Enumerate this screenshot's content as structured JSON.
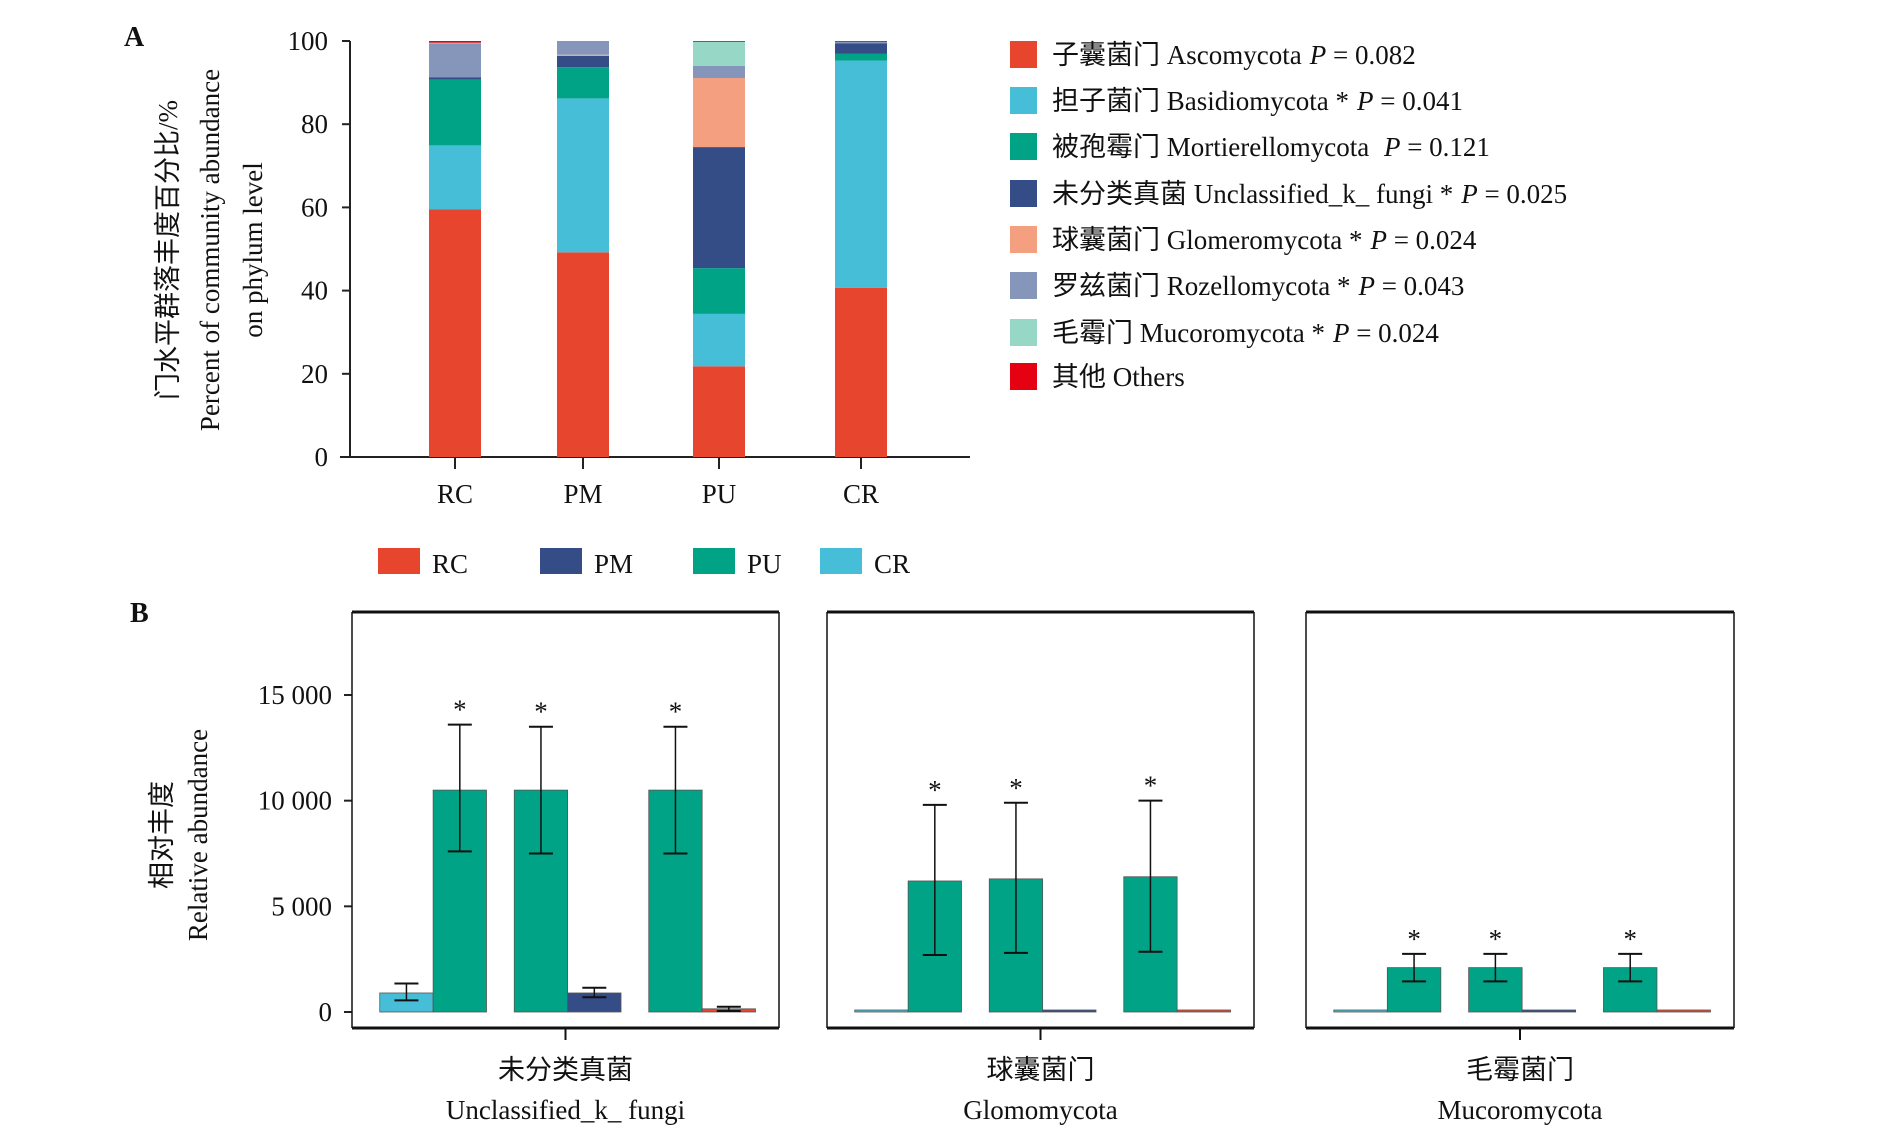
{
  "chart_data": [
    {
      "type": "bar",
      "stacked": true,
      "panel_label": "A",
      "ylabel_lines": [
        "门水平群落丰度百分比/%",
        "Percent of community abundance",
        "on phylum level"
      ],
      "ylim": [
        0,
        100
      ],
      "yticks": [
        0,
        20,
        40,
        60,
        80,
        100
      ],
      "categories": [
        "RC",
        "PM",
        "PU",
        "CR"
      ],
      "legend_position": "right",
      "p_label": "P",
      "series": [
        {
          "name": "子囊菌门 Ascomycota",
          "sig": "",
          "p": " = 0.082",
          "color": "#E8452F",
          "values": [
            59.5,
            49.2,
            21.8,
            40.7
          ]
        },
        {
          "name": "担子菌门 Basidiomycota",
          "sig": " *",
          "p": " = 0.041",
          "color": "#47BED8",
          "values": [
            15.4,
            37.0,
            12.6,
            54.6
          ]
        },
        {
          "name": "被孢霉门 Mortierellomycota",
          "sig": " ",
          "p": " = 0.121",
          "color": "#00A386",
          "values": [
            15.8,
            7.5,
            11.0,
            1.6
          ]
        },
        {
          "name": "未分类真菌 Unclassified_k_ fungi",
          "sig": " *",
          "p": " = 0.025",
          "color": "#354D87",
          "values": [
            0.6,
            2.7,
            29.1,
            2.5
          ]
        },
        {
          "name": "球囊菌门 Glomeromycota",
          "sig": " *",
          "p": " = 0.024",
          "color": "#F39F80",
          "values": [
            0.0,
            0.3,
            16.6,
            0.0
          ]
        },
        {
          "name": "罗兹菌门 Rozellomycota",
          "sig": " *",
          "p": " = 0.043",
          "color": "#8596BA",
          "values": [
            8.1,
            3.3,
            2.9,
            0.4
          ]
        },
        {
          "name": "毛霉门 Mucoromycota",
          "sig": " *",
          "p": " = 0.024",
          "color": "#96D7C6",
          "values": [
            0.2,
            0.0,
            5.8,
            0.0
          ]
        },
        {
          "name": "其他 Others",
          "sig": "",
          "p": "",
          "color": "#E50012",
          "values": [
            0.4,
            0.0,
            0.2,
            0.2
          ]
        }
      ]
    },
    {
      "type": "bar",
      "panel_label": "B",
      "ylabel_lines": [
        "相对丰度",
        "Relative abundance"
      ],
      "ylim": [
        0,
        18000
      ],
      "yticks": [
        0,
        5000,
        10000,
        15000
      ],
      "ytick_labels": [
        "0",
        "5 000",
        "10 000",
        "15 000"
      ],
      "legend": [
        {
          "name": "RC",
          "color": "#E8452F"
        },
        {
          "name": "PM",
          "color": "#354D87"
        },
        {
          "name": "PU",
          "color": "#00A386"
        },
        {
          "name": "CR",
          "color": "#47BED8"
        }
      ],
      "panels": [
        {
          "title_cn": "未分类真菌",
          "title_en": "Unclassified_k_ fungi",
          "pairs": [
            {
              "bars": [
                {
                  "group": "CR",
                  "value": 900,
                  "err": [
                    550,
                    1350
                  ]
                },
                {
                  "group": "PU",
                  "value": 10500,
                  "err": [
                    7600,
                    13600
                  ],
                  "sig": "*"
                }
              ]
            },
            {
              "bars": [
                {
                  "group": "PU",
                  "value": 10500,
                  "err": [
                    7500,
                    13500
                  ],
                  "sig": "*"
                },
                {
                  "group": "PM",
                  "value": 900,
                  "err": [
                    700,
                    1150
                  ]
                }
              ]
            },
            {
              "bars": [
                {
                  "group": "PU",
                  "value": 10500,
                  "err": [
                    7500,
                    13500
                  ],
                  "sig": "*"
                },
                {
                  "group": "RC",
                  "value": 150,
                  "err": [
                    50,
                    250
                  ]
                }
              ]
            }
          ]
        },
        {
          "title_cn": "球囊菌门",
          "title_en": "Glomomycota",
          "pairs": [
            {
              "bars": [
                {
                  "group": "CR",
                  "value": 50,
                  "err": [
                    50,
                    50
                  ]
                },
                {
                  "group": "PU",
                  "value": 6200,
                  "err": [
                    2700,
                    9800
                  ],
                  "sig": "*"
                }
              ]
            },
            {
              "bars": [
                {
                  "group": "PU",
                  "value": 6300,
                  "err": [
                    2800,
                    9900
                  ],
                  "sig": "*"
                },
                {
                  "group": "PM",
                  "value": 50,
                  "err": [
                    50,
                    50
                  ]
                }
              ]
            },
            {
              "bars": [
                {
                  "group": "PU",
                  "value": 6400,
                  "err": [
                    2850,
                    10000
                  ],
                  "sig": "*"
                },
                {
                  "group": "RC",
                  "value": 50,
                  "err": [
                    50,
                    50
                  ]
                }
              ]
            }
          ]
        },
        {
          "title_cn": "毛霉菌门",
          "title_en": "Mucoromycota",
          "pairs": [
            {
              "bars": [
                {
                  "group": "CR",
                  "value": 0,
                  "err": [
                    0,
                    0
                  ]
                },
                {
                  "group": "PU",
                  "value": 2100,
                  "err": [
                    1450,
                    2750
                  ],
                  "sig": "*"
                }
              ]
            },
            {
              "bars": [
                {
                  "group": "PU",
                  "value": 2100,
                  "err": [
                    1450,
                    2750
                  ],
                  "sig": "*"
                },
                {
                  "group": "PM",
                  "value": 0,
                  "err": [
                    0,
                    0
                  ]
                }
              ]
            },
            {
              "bars": [
                {
                  "group": "PU",
                  "value": 2100,
                  "err": [
                    1450,
                    2750
                  ],
                  "sig": "*"
                },
                {
                  "group": "RC",
                  "value": 0,
                  "err": [
                    0,
                    0
                  ]
                }
              ]
            }
          ]
        }
      ]
    }
  ]
}
